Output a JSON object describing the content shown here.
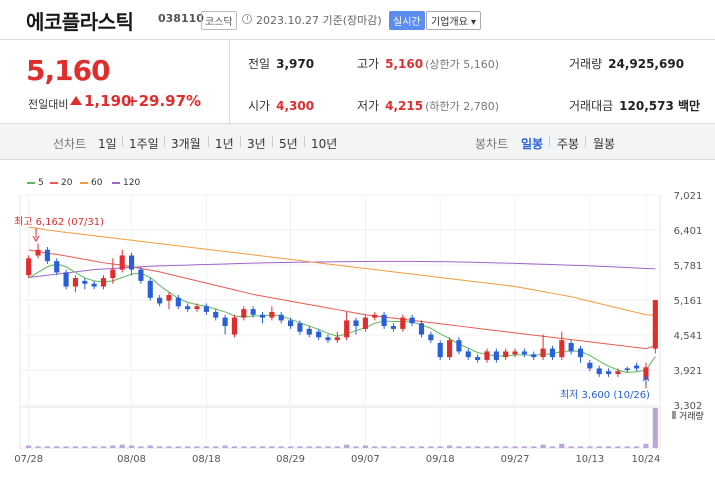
{
  "header": {
    "name": "에코플라스틱",
    "code": "038110",
    "market": "코스닥",
    "date": "2023.10.27 기준(장마감)",
    "realtime": "실시간",
    "company": "기업개요 ▾"
  },
  "price": {
    "current": "5,160",
    "diff_label": "전일대비",
    "diff": "1,190",
    "rate": "+29.97%"
  },
  "stats": {
    "prev_label": "전일",
    "prev": "3,970",
    "high_label": "고가",
    "high": "5,160",
    "high_sub": "(상한가 5,160)",
    "volume_label": "거래량",
    "volume": "24,925,690",
    "open_label": "시가",
    "open": "4,300",
    "low_label": "저가",
    "low": "4,215",
    "low_sub": "(하한가 2,780)",
    "amount_label": "거래대금",
    "amount": "120,573 백만"
  },
  "tabs": {
    "line_chart": "선차트",
    "ranges": [
      "1일",
      "1주일",
      "3개월",
      "1년",
      "3년",
      "5년",
      "10년"
    ],
    "candle_chart": "봉차트",
    "candle_periods": [
      "일봉",
      "주봉",
      "월봉"
    ],
    "active_candle": "일봉"
  },
  "colors": {
    "up": "#e02d2d",
    "down": "#2960d8",
    "ma5": "#5cb85c",
    "ma20": "#e85a4f",
    "ma60": "#f39c3c",
    "ma120": "#a066cc"
  },
  "chart_data": {
    "type": "candlestick",
    "legend": [
      "5",
      "20",
      "60",
      "120"
    ],
    "y_ticks": [
      7021,
      6401,
      5781,
      5161,
      4541,
      3921,
      3302
    ],
    "ylim": [
      3302,
      7021
    ],
    "x_labels": [
      "07/28",
      "08/08",
      "08/18",
      "08/29",
      "09/07",
      "09/18",
      "09/27",
      "10/13",
      "10/24"
    ],
    "high_annotation": "최고 6,162 (07/31)",
    "low_annotation": "최저 3,600 (10/26)",
    "volume_label": "거래량",
    "candles": [
      [
        5600,
        5900,
        5950,
        5550
      ],
      [
        5950,
        6050,
        6162,
        5900
      ],
      [
        6050,
        5850,
        6100,
        5800
      ],
      [
        5850,
        5650,
        5900,
        5600
      ],
      [
        5650,
        5400,
        5700,
        5350
      ],
      [
        5400,
        5550,
        5600,
        5300
      ],
      [
        5500,
        5450,
        5550,
        5350
      ],
      [
        5450,
        5400,
        5500,
        5350
      ],
      [
        5400,
        5550,
        5600,
        5350
      ],
      [
        5550,
        5700,
        5900,
        5450
      ],
      [
        5700,
        5950,
        6050,
        5650
      ],
      [
        5950,
        5700,
        6000,
        5600
      ],
      [
        5700,
        5500,
        5750,
        5450
      ],
      [
        5500,
        5200,
        5550,
        5150
      ],
      [
        5200,
        5100,
        5250,
        5050
      ],
      [
        5150,
        5250,
        5300,
        5000
      ],
      [
        5200,
        5050,
        5250,
        5000
      ],
      [
        5050,
        5000,
        5100,
        4950
      ],
      [
        5000,
        5050,
        5100,
        4950
      ],
      [
        5050,
        4950,
        5100,
        4900
      ],
      [
        4950,
        4850,
        5000,
        4800
      ],
      [
        4850,
        4700,
        4900,
        4550
      ],
      [
        4550,
        4850,
        4900,
        4500
      ],
      [
        4850,
        5000,
        5050,
        4800
      ],
      [
        5000,
        4900,
        5050,
        4850
      ],
      [
        4900,
        4850,
        4950,
        4750
      ],
      [
        4850,
        4950,
        5050,
        4800
      ],
      [
        4900,
        4800,
        4950,
        4750
      ],
      [
        4800,
        4700,
        4850,
        4650
      ],
      [
        4750,
        4600,
        4800,
        4550
      ],
      [
        4650,
        4550,
        4700,
        4500
      ],
      [
        4600,
        4500,
        4650,
        4450
      ],
      [
        4500,
        4450,
        4550,
        4400
      ],
      [
        4450,
        4500,
        4600,
        4400
      ],
      [
        4500,
        4800,
        4950,
        4450
      ],
      [
        4800,
        4700,
        4850,
        4550
      ],
      [
        4650,
        4850,
        4900,
        4600
      ],
      [
        4850,
        4900,
        4950,
        4800
      ],
      [
        4900,
        4700,
        4950,
        4650
      ],
      [
        4700,
        4650,
        4750,
        4600
      ],
      [
        4650,
        4850,
        4900,
        4600
      ],
      [
        4850,
        4750,
        4900,
        4700
      ],
      [
        4750,
        4550,
        4800,
        4500
      ],
      [
        4550,
        4450,
        4600,
        4400
      ],
      [
        4400,
        4150,
        4450,
        4100
      ],
      [
        4150,
        4450,
        4500,
        4100
      ],
      [
        4450,
        4250,
        4500,
        4200
      ],
      [
        4250,
        4150,
        4300,
        4100
      ],
      [
        4150,
        4100,
        4200,
        4050
      ],
      [
        4100,
        4250,
        4300,
        4050
      ],
      [
        4250,
        4100,
        4300,
        4050
      ],
      [
        4150,
        4250,
        4300,
        4100
      ],
      [
        4200,
        4250,
        4300,
        4150
      ],
      [
        4250,
        4200,
        4300,
        4150
      ],
      [
        4200,
        4150,
        4250,
        4100
      ],
      [
        4150,
        4300,
        4550,
        4100
      ],
      [
        4300,
        4150,
        4350,
        4100
      ],
      [
        4150,
        4450,
        4600,
        4100
      ],
      [
        4400,
        4250,
        4450,
        4200
      ],
      [
        4300,
        4150,
        4350,
        4050
      ],
      [
        4050,
        3950,
        4100,
        3900
      ],
      [
        3950,
        3850,
        4000,
        3800
      ],
      [
        3900,
        3850,
        3950,
        3800
      ],
      [
        3850,
        3900,
        3950,
        3800
      ],
      [
        3950,
        3920,
        3980,
        3880
      ],
      [
        4000,
        3950,
        4050,
        3900
      ],
      [
        3750,
        3970,
        4050,
        3600
      ],
      [
        4300,
        5160,
        5160,
        4215
      ]
    ],
    "ma5": [
      5550,
      5650,
      5750,
      5800,
      5750,
      5650,
      5550,
      5500,
      5480,
      5500,
      5560,
      5620,
      5640,
      5560,
      5420,
      5300,
      5190,
      5120,
      5080,
      5050,
      5000,
      4950,
      4880,
      4860,
      4880,
      4880,
      4900,
      4880,
      4820,
      4760,
      4700,
      4640,
      4570,
      4520,
      4560,
      4620,
      4670,
      4750,
      4790,
      4780,
      4780,
      4770,
      4720,
      4660,
      4560,
      4480,
      4380,
      4310,
      4230,
      4200,
      4170,
      4170,
      4190,
      4190,
      4180,
      4200,
      4210,
      4250,
      4260,
      4250,
      4180,
      4080,
      3990,
      3920,
      3880,
      3890,
      3920,
      4160
    ],
    "ma20": [
      6050,
      6020,
      5990,
      5970,
      5940,
      5910,
      5880,
      5850,
      5820,
      5800,
      5780,
      5750,
      5720,
      5690,
      5660,
      5620,
      5580,
      5540,
      5500,
      5460,
      5420,
      5380,
      5340,
      5300,
      5260,
      5230,
      5200,
      5170,
      5140,
      5110,
      5080,
      5050,
      5020,
      4990,
      4960,
      4930,
      4900,
      4880,
      4860,
      4840,
      4820,
      4800,
      4780,
      4760,
      4740,
      4720,
      4700,
      4680,
      4660,
      4640,
      4620,
      4600,
      4580,
      4560,
      4540,
      4520,
      4500,
      4480,
      4460,
      4440,
      4420,
      4400,
      4380,
      4360,
      4340,
      4320,
      4300,
      4350
    ],
    "ma60": [
      6450,
      6430,
      6400,
      6380,
      6360,
      6340,
      6320,
      6300,
      6280,
      6260,
      6240,
      6220,
      6200,
      6180,
      6160,
      6140,
      6120,
      6100,
      6080,
      6060,
      6040,
      6020,
      6000,
      5980,
      5960,
      5940,
      5920,
      5900,
      5880,
      5860,
      5840,
      5820,
      5800,
      5780,
      5760,
      5740,
      5720,
      5700,
      5680,
      5660,
      5640,
      5620,
      5600,
      5580,
      5560,
      5540,
      5520,
      5500,
      5480,
      5460,
      5440,
      5420,
      5400,
      5370,
      5340,
      5310,
      5280,
      5250,
      5220,
      5180,
      5140,
      5100,
      5060,
      5020,
      4980,
      4940,
      4900,
      4890
    ],
    "ma120": [
      5560,
      5580,
      5600,
      5620,
      5640,
      5660,
      5680,
      5700,
      5710,
      5720,
      5730,
      5740,
      5750,
      5760,
      5765,
      5770,
      5775,
      5780,
      5785,
      5790,
      5795,
      5800,
      5805,
      5810,
      5815,
      5820,
      5822,
      5825,
      5828,
      5830,
      5832,
      5834,
      5836,
      5838,
      5840,
      5842,
      5844,
      5845,
      5846,
      5846,
      5846,
      5845,
      5844,
      5842,
      5840,
      5838,
      5835,
      5832,
      5828,
      5824,
      5820,
      5815,
      5810,
      5805,
      5800,
      5795,
      5790,
      5784,
      5778,
      5772,
      5766,
      5760,
      5752,
      5744,
      5736,
      5728,
      5720,
      5715
    ],
    "volume": [
      3,
      2,
      2,
      2,
      2,
      2,
      2,
      2,
      2,
      3,
      4,
      3,
      2,
      3,
      2,
      2,
      2,
      2,
      2,
      2,
      2,
      3,
      2,
      2,
      2,
      2,
      2,
      2,
      2,
      2,
      2,
      2,
      2,
      2,
      4,
      2,
      3,
      2,
      2,
      2,
      2,
      2,
      2,
      2,
      2,
      3,
      2,
      2,
      2,
      2,
      2,
      2,
      2,
      2,
      2,
      4,
      2,
      5,
      2,
      2,
      2,
      2,
      2,
      2,
      2,
      2,
      5,
      48
    ]
  }
}
